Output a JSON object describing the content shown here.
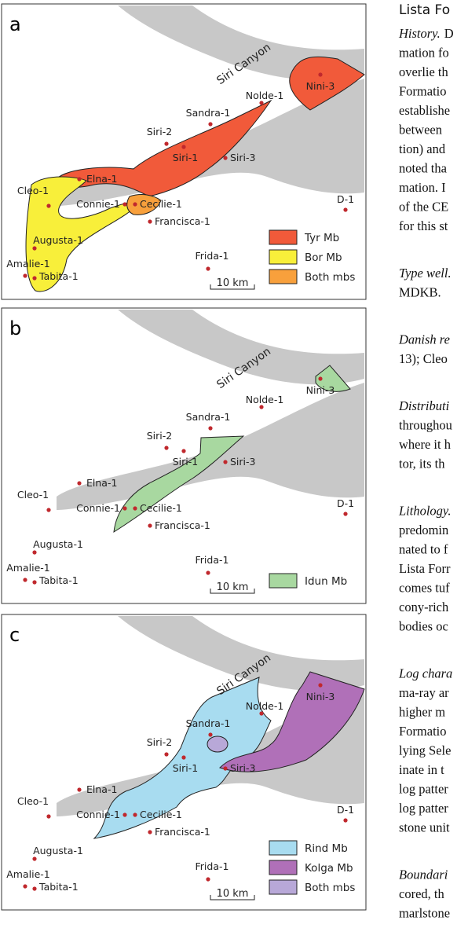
{
  "panels": [
    {
      "label": "a",
      "canyon": "Siri Canyon",
      "wells": [
        "Nini-3",
        "Nolde-1",
        "Sandra-1",
        "Siri-2",
        "Siri-1",
        "Siri-3",
        "Elna-1",
        "Cleo-1",
        "Connie-1",
        "Cecilie-1",
        "Francisca-1",
        "D-1",
        "Augusta-1",
        "Amalie-1",
        "Tabita-1",
        "Frida-1"
      ],
      "scale": "10 km",
      "legend": [
        "Tyr Mb",
        "Bor Mb",
        "Both mbs"
      ]
    },
    {
      "label": "b",
      "canyon": "Siri Canyon",
      "wells": [
        "Nini-3",
        "Nolde-1",
        "Sandra-1",
        "Siri-2",
        "Siri-1",
        "Siri-3",
        "Elna-1",
        "Cleo-1",
        "Connie-1",
        "Cecilie-1",
        "Francisca-1",
        "D-1",
        "Augusta-1",
        "Amalie-1",
        "Tabita-1",
        "Frida-1"
      ],
      "scale": "10 km",
      "legend": [
        "Idun Mb"
      ]
    },
    {
      "label": "c",
      "canyon": "Siri Canyon",
      "wells": [
        "Nini-3",
        "Nolde-1",
        "Sandra-1",
        "Siri-2",
        "Siri-1",
        "Siri-3",
        "Elna-1",
        "Cleo-1",
        "Connie-1",
        "Cecilie-1",
        "Francisca-1",
        "D-1",
        "Augusta-1",
        "Amalie-1",
        "Tabita-1",
        "Frida-1"
      ],
      "scale": "10 km",
      "legend": [
        "Rind Mb",
        "Kolga Mb",
        "Both mbs"
      ]
    }
  ],
  "text_column": {
    "heading": "Lista Fo",
    "paragraphs": [
      {
        "lead": "History.",
        "rest": "D",
        "lines": [
          "mation fo",
          "overlie th",
          "Formatio",
          "establishe",
          "between",
          "tion) and",
          "noted tha",
          "mation. I",
          "of the CE",
          "for this st"
        ]
      },
      {
        "lead": "Type well.",
        "lines": [
          "MDKB."
        ]
      },
      {
        "lead": "Danish re",
        "lines": [
          "13); Cleo"
        ]
      },
      {
        "lead": "Distributi",
        "lines": [
          "throughou",
          "where it h",
          "tor, its th"
        ]
      },
      {
        "lead": "Lithology.",
        "lines": [
          "predomin",
          "nated to f",
          "Lista Forr",
          "comes tuf",
          "cony-rich",
          "bodies oc"
        ]
      },
      {
        "lead": "Log chara",
        "lines": [
          "ma-ray ar",
          "higher m",
          "Formatio",
          "lying Sele",
          "inate in t",
          "log patter",
          "log patter",
          "stone unit"
        ]
      },
      {
        "lead": "Boundari",
        "lines": [
          "cored, th",
          "marlstone"
        ]
      }
    ]
  }
}
